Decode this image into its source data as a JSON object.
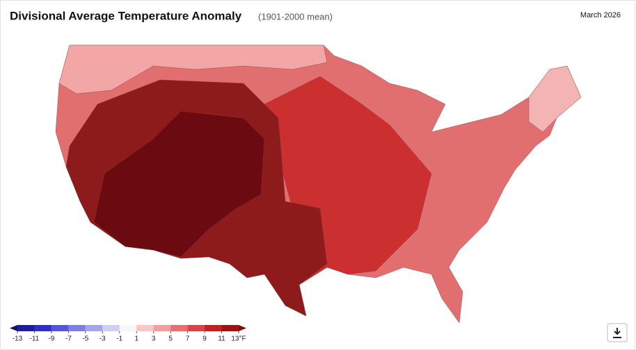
{
  "header": {
    "title": "Divisional Average Temperature Anomaly",
    "subtitle": "(1901-2000 mean)",
    "date": "March 2026"
  },
  "legend": {
    "ticks": [
      -13,
      -11,
      -9,
      -7,
      -5,
      -3,
      -1,
      1,
      3,
      5,
      7,
      9,
      11,
      {
        "value": 13,
        "label": "13°F"
      }
    ],
    "colors": [
      "#1e1e96",
      "#2f2fc2",
      "#5656d6",
      "#7f7fe0",
      "#a5a5ea",
      "#cfcff4",
      "#f7f7f7",
      "#f8c8c8",
      "#ef9f9f",
      "#e47171",
      "#d64545",
      "#c02222",
      "#9a1616"
    ],
    "under_color": "#141470",
    "over_color": "#7a1010"
  }
}
